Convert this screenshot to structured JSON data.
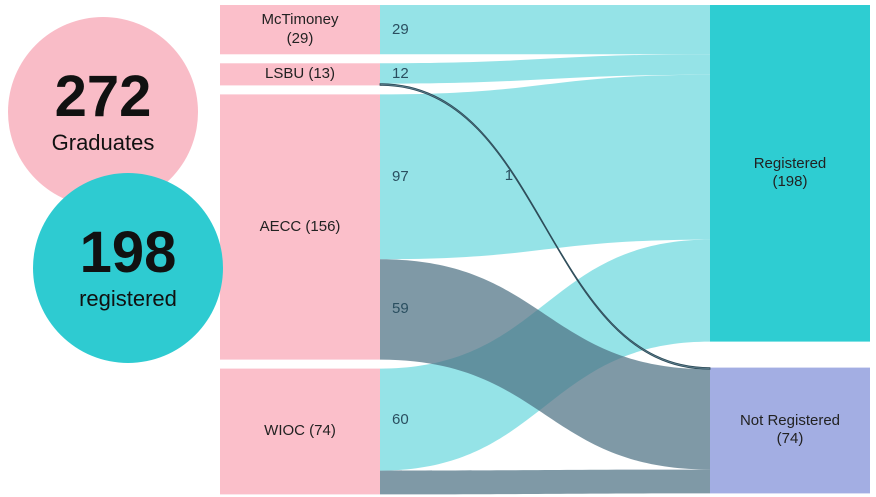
{
  "stats": [
    {
      "value": "272",
      "label": "Graduates",
      "color": "#f9bcc7"
    },
    {
      "value": "198",
      "label": "registered",
      "color": "#2ecbd1"
    }
  ],
  "nodes": [
    {
      "label": "McTimoney\n(29)",
      "side": "source",
      "color": "#fbbfca"
    },
    {
      "label": "LSBU (13)",
      "side": "source",
      "color": "#fbbfca"
    },
    {
      "label": "AECC (156)",
      "side": "source",
      "color": "#fbbfca"
    },
    {
      "label": "WIOC (74)",
      "side": "source",
      "color": "#fbbfca"
    },
    {
      "label": "Registered\n(198)",
      "side": "target",
      "color": "#2ecdd2",
      "link_color": "#8fe2e6"
    },
    {
      "label": "Not Registered\n(74)",
      "side": "target",
      "color": "#a3aee3",
      "link_color": "#4e7283"
    }
  ],
  "links": [
    {
      "source": 0,
      "target": 4,
      "value": 29,
      "labeled": true
    },
    {
      "source": 1,
      "target": 4,
      "value": 12,
      "labeled": true
    },
    {
      "source": 1,
      "target": 5,
      "value": 1,
      "labeled": true
    },
    {
      "source": 2,
      "target": 4,
      "value": 97,
      "labeled": true
    },
    {
      "source": 2,
      "target": 5,
      "value": 59,
      "labeled": true
    },
    {
      "source": 3,
      "target": 4,
      "value": 60,
      "labeled": true
    },
    {
      "source": 3,
      "target": 5,
      "value": 14,
      "labeled": false
    }
  ]
}
